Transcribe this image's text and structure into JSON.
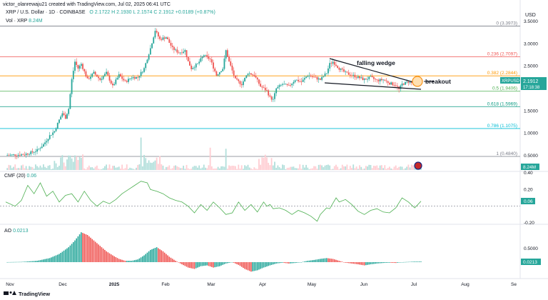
{
  "header": {
    "author_line": "victor_olanrewaju21 created with TradingView.com, Jul 02, 2025 06:41 UTC",
    "symbol": "XRP / U.S. Dollar · 1D · COINBASE",
    "ohlc": "O 2.1722  H 2.1930  L 2.1574  C 2.1912  +0.0189 (+0.87%)",
    "vol_label": "Vol · XRP",
    "vol_value": "8.24M",
    "currency": "USD"
  },
  "indicators": {
    "cmf_label": "CMF (20)",
    "cmf_value": "0.06",
    "ao_label": "AO",
    "ao_value": "0.0213"
  },
  "footer": {
    "brand": "TradingView"
  },
  "annotations": {
    "wedge": "falling wedge",
    "breakout": "breakout"
  },
  "price_badge": {
    "symbol": "XRPUSD",
    "price": "2.1912",
    "countdown": "17:18:38"
  },
  "colors": {
    "up": "#26a69a",
    "down": "#ef5350",
    "wedge": "#131722",
    "breakout": "#f7931a"
  },
  "chart_data": {
    "type": "candlestick",
    "x_ticks": [
      "Nov",
      "Dec",
      "2025",
      "Feb",
      "Mar",
      "Apr",
      "May",
      "Jun",
      "Jul",
      "Aug",
      "Se"
    ],
    "y_ticks": [
      "3.5000",
      "3.0000",
      "2.5000",
      "2.0000",
      "1.5000",
      "1.0000",
      "0.5000"
    ],
    "ylim": [
      0.45,
      3.5
    ],
    "fib_levels": [
      {
        "label": "0 (3.3973)",
        "value": 3.3973,
        "color": "#787b86"
      },
      {
        "label": "0.236 (2.7097)",
        "value": 2.7097,
        "color": "#ef5350"
      },
      {
        "label": "0.382 (2.2844)",
        "value": 2.2844,
        "color": "#ff9800"
      },
      {
        "label": "0.5 (1.9406)",
        "value": 1.9406,
        "color": "#4caf50"
      },
      {
        "label": "0.618 (1.5969)",
        "value": 1.5969,
        "color": "#089981"
      },
      {
        "label": "0.786 (1.1075)",
        "value": 1.1075,
        "color": "#00bcd4"
      },
      {
        "label": "1 (0.4840)",
        "value": 0.484,
        "color": "#787b86"
      }
    ],
    "price_path": [
      [
        0,
        0.51
      ],
      [
        6,
        0.52
      ],
      [
        12,
        0.53
      ],
      [
        17,
        0.58
      ],
      [
        20,
        0.62
      ],
      [
        24,
        0.75
      ],
      [
        28,
        0.95
      ],
      [
        31,
        1.05
      ],
      [
        34,
        1.3
      ],
      [
        36,
        1.45
      ],
      [
        38,
        1.35
      ],
      [
        40,
        1.55
      ],
      [
        42,
        2.2
      ],
      [
        44,
        2.6
      ],
      [
        46,
        2.45
      ],
      [
        48,
        2.55
      ],
      [
        52,
        2.2
      ],
      [
        56,
        2.35
      ],
      [
        60,
        2.2
      ],
      [
        64,
        2.35
      ],
      [
        68,
        2.05
      ],
      [
        72,
        2.3
      ],
      [
        76,
        2.15
      ],
      [
        80,
        2.25
      ],
      [
        84,
        2.25
      ],
      [
        88,
        2.45
      ],
      [
        92,
        2.9
      ],
      [
        95,
        3.3
      ],
      [
        98,
        3.1
      ],
      [
        102,
        3.15
      ],
      [
        106,
        2.9
      ],
      [
        110,
        2.8
      ],
      [
        114,
        2.85
      ],
      [
        116,
        2.6
      ],
      [
        118,
        2.45
      ],
      [
        122,
        2.55
      ],
      [
        126,
        2.75
      ],
      [
        130,
        2.65
      ],
      [
        134,
        2.3
      ],
      [
        138,
        2.45
      ],
      [
        140,
        2.85
      ],
      [
        142,
        2.6
      ],
      [
        146,
        2.2
      ],
      [
        150,
        2.1
      ],
      [
        154,
        2.35
      ],
      [
        158,
        2.3
      ],
      [
        162,
        2.05
      ],
      [
        166,
        1.95
      ],
      [
        168,
        1.8
      ],
      [
        170,
        1.75
      ],
      [
        172,
        2.0
      ],
      [
        176,
        2.1
      ],
      [
        180,
        2.05
      ],
      [
        184,
        2.2
      ],
      [
        188,
        2.15
      ],
      [
        192,
        2.3
      ],
      [
        196,
        2.25
      ],
      [
        200,
        2.2
      ],
      [
        204,
        2.35
      ],
      [
        206,
        2.55
      ],
      [
        208,
        2.6
      ],
      [
        212,
        2.45
      ],
      [
        216,
        2.35
      ],
      [
        220,
        2.3
      ],
      [
        224,
        2.25
      ],
      [
        228,
        2.2
      ],
      [
        232,
        2.25
      ],
      [
        236,
        2.18
      ],
      [
        240,
        2.2
      ],
      [
        244,
        2.12
      ],
      [
        248,
        2.08
      ],
      [
        250,
        1.98
      ],
      [
        252,
        2.1
      ],
      [
        256,
        2.15
      ],
      [
        260,
        2.1
      ],
      [
        264,
        2.19
      ]
    ],
    "cmf_ticks": [
      "0.40",
      "0.20",
      "-0.20"
    ],
    "cmf_path": [
      [
        0,
        0.05
      ],
      [
        6,
        0.0
      ],
      [
        10,
        0.07
      ],
      [
        14,
        0.25
      ],
      [
        18,
        0.15
      ],
      [
        22,
        0.28
      ],
      [
        26,
        0.12
      ],
      [
        30,
        0.18
      ],
      [
        34,
        0.05
      ],
      [
        38,
        0.13
      ],
      [
        42,
        0.15
      ],
      [
        46,
        0.05
      ],
      [
        50,
        0.18
      ],
      [
        54,
        0.07
      ],
      [
        58,
        0.0
      ],
      [
        62,
        0.06
      ],
      [
        66,
        0.03
      ],
      [
        70,
        0.08
      ],
      [
        74,
        0.15
      ],
      [
        78,
        0.2
      ],
      [
        82,
        0.25
      ],
      [
        86,
        0.3
      ],
      [
        90,
        0.28
      ],
      [
        92,
        0.2
      ],
      [
        96,
        0.18
      ],
      [
        100,
        0.15
      ],
      [
        104,
        0.1
      ],
      [
        108,
        0.07
      ],
      [
        112,
        0.05
      ],
      [
        116,
        0.0
      ],
      [
        120,
        -0.08
      ],
      [
        124,
        0.02
      ],
      [
        128,
        -0.05
      ],
      [
        132,
        0.05
      ],
      [
        136,
        -0.02
      ],
      [
        140,
        -0.1
      ],
      [
        144,
        -0.08
      ],
      [
        148,
        0.05
      ],
      [
        152,
        -0.05
      ],
      [
        156,
        0.02
      ],
      [
        160,
        -0.07
      ],
      [
        164,
        0.05
      ],
      [
        166,
        0.0
      ],
      [
        168,
        0.02
      ],
      [
        170,
        -0.03
      ],
      [
        174,
        -0.02
      ],
      [
        178,
        -0.05
      ],
      [
        182,
        -0.1
      ],
      [
        186,
        -0.05
      ],
      [
        190,
        -0.08
      ],
      [
        194,
        -0.12
      ],
      [
        198,
        -0.18
      ],
      [
        200,
        -0.1
      ],
      [
        204,
        -0.02
      ],
      [
        206,
        -0.03
      ],
      [
        210,
        0.1
      ],
      [
        212,
        0.05
      ],
      [
        216,
        0.08
      ],
      [
        220,
        0.02
      ],
      [
        224,
        -0.06
      ],
      [
        228,
        -0.1
      ],
      [
        232,
        -0.05
      ],
      [
        236,
        -0.03
      ],
      [
        240,
        -0.07
      ],
      [
        244,
        -0.08
      ],
      [
        248,
        -0.02
      ],
      [
        252,
        0.1
      ],
      [
        256,
        0.05
      ],
      [
        260,
        -0.02
      ],
      [
        264,
        0.06
      ]
    ],
    "ao_ticks": [
      "0.5000",
      "0.0213"
    ],
    "ao_path": [
      [
        0,
        0.0
      ],
      [
        10,
        0.01
      ],
      [
        20,
        0.05
      ],
      [
        28,
        0.15
      ],
      [
        34,
        0.3
      ],
      [
        40,
        0.55
      ],
      [
        44,
        0.8
      ],
      [
        48,
        1.1
      ],
      [
        52,
        1.0
      ],
      [
        56,
        0.8
      ],
      [
        60,
        0.6
      ],
      [
        64,
        0.4
      ],
      [
        68,
        0.25
      ],
      [
        72,
        0.12
      ],
      [
        76,
        0.05
      ],
      [
        80,
        0.05
      ],
      [
        84,
        0.1
      ],
      [
        88,
        0.25
      ],
      [
        92,
        0.45
      ],
      [
        96,
        0.55
      ],
      [
        100,
        0.4
      ],
      [
        104,
        0.2
      ],
      [
        108,
        0.05
      ],
      [
        112,
        -0.08
      ],
      [
        116,
        -0.2
      ],
      [
        120,
        -0.25
      ],
      [
        124,
        -0.15
      ],
      [
        128,
        -0.12
      ],
      [
        132,
        -0.2
      ],
      [
        136,
        -0.15
      ],
      [
        140,
        -0.05
      ],
      [
        144,
        0.0
      ],
      [
        148,
        -0.1
      ],
      [
        152,
        -0.25
      ],
      [
        156,
        -0.35
      ],
      [
        160,
        -0.3
      ],
      [
        164,
        -0.2
      ],
      [
        168,
        -0.12
      ],
      [
        172,
        -0.05
      ],
      [
        176,
        -0.02
      ],
      [
        180,
        -0.05
      ],
      [
        184,
        -0.03
      ],
      [
        188,
        0.0
      ],
      [
        192,
        0.05
      ],
      [
        196,
        0.08
      ],
      [
        200,
        0.12
      ],
      [
        204,
        0.15
      ],
      [
        208,
        0.12
      ],
      [
        212,
        0.05
      ],
      [
        216,
        -0.02
      ],
      [
        220,
        -0.05
      ],
      [
        224,
        -0.08
      ],
      [
        228,
        -0.12
      ],
      [
        232,
        -0.08
      ],
      [
        236,
        -0.05
      ],
      [
        240,
        -0.03
      ],
      [
        244,
        -0.02
      ],
      [
        248,
        -0.03
      ],
      [
        252,
        0.0
      ],
      [
        256,
        0.01
      ],
      [
        260,
        0.02
      ],
      [
        264,
        0.0213
      ]
    ]
  }
}
